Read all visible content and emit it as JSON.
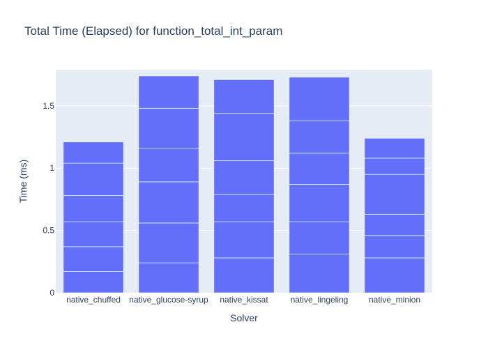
{
  "chart_data": {
    "type": "bar",
    "barmode": "stack",
    "title": "Total Time (Elapsed) for function_total_int_param",
    "xlabel": "Solver",
    "ylabel": "Time (ms)",
    "categories": [
      "native_chuffed",
      "native_glucose-syrup",
      "native_kissat",
      "native_lingeling",
      "native_minion"
    ],
    "segments": [
      [
        0.17,
        0.2,
        0.2,
        0.21,
        0.26,
        0.17
      ],
      [
        0.24,
        0.32,
        0.33,
        0.27,
        0.32,
        0.26
      ],
      [
        0.28,
        0.29,
        0.22,
        0.27,
        0.38,
        0.27
      ],
      [
        0.31,
        0.26,
        0.3,
        0.25,
        0.26,
        0.35
      ],
      [
        0.28,
        0.18,
        0.17,
        0.32,
        0.13,
        0.16
      ]
    ],
    "totals": [
      1.21,
      1.73,
      1.71,
      1.73,
      1.24
    ],
    "ylim": [
      0,
      1.79
    ],
    "yticks": [
      0,
      0.5,
      1,
      1.5
    ],
    "ytick_labels": [
      "0",
      "0.5",
      "1",
      "1.5"
    ],
    "grid": true,
    "colors": {
      "bar": "#636efa",
      "segment_line": "#e5ecf6",
      "plot_bg": "#e5ecf6",
      "gridline": "#ffffff",
      "text": "#2a3f5f"
    }
  }
}
